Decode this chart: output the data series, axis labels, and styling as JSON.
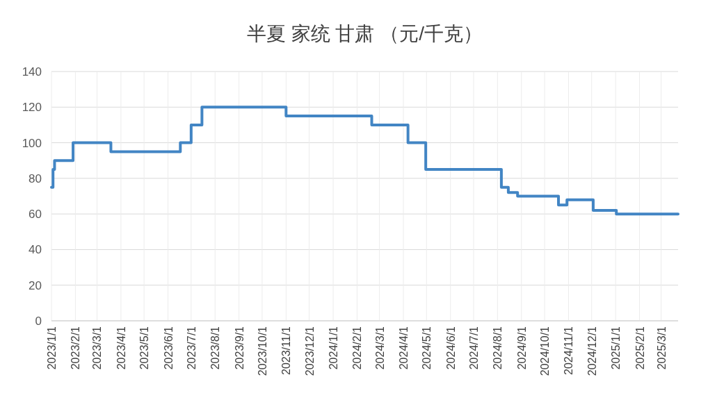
{
  "chart_data": {
    "type": "step",
    "title": "半夏 家统 甘肃 （元/千克）",
    "x": [
      "2023-01-01",
      "2023-01-03",
      "2023-01-05",
      "2023-01-29",
      "2023-03-19",
      "2023-06-17",
      "2023-07-01",
      "2023-07-15",
      "2023-11-01",
      "2024-02-20",
      "2024-04-07",
      "2024-04-30",
      "2024-08-06",
      "2024-08-15",
      "2024-08-27",
      "2024-10-19",
      "2024-10-30",
      "2024-12-03",
      "2025-01-02",
      "2025-03-23"
    ],
    "series": [
      {
        "color": "#4285c4",
        "values": [
          75,
          85,
          90,
          100,
          95,
          100,
          110,
          120,
          115,
          110,
          100,
          85,
          75,
          72,
          70,
          65,
          68,
          62,
          60,
          60
        ]
      }
    ],
    "xlim": [
      "2023-01-01",
      "2025-03-23"
    ],
    "xticks": [
      {
        "value": "2023-01-01",
        "label": "2023/1/1"
      },
      {
        "value": "2023-02-01",
        "label": "2023/2/1"
      },
      {
        "value": "2023-03-01",
        "label": "2023/3/1"
      },
      {
        "value": "2023-04-01",
        "label": "2023/4/1"
      },
      {
        "value": "2023-05-01",
        "label": "2023/5/1"
      },
      {
        "value": "2023-06-01",
        "label": "2023/6/1"
      },
      {
        "value": "2023-07-01",
        "label": "2023/7/1"
      },
      {
        "value": "2023-08-01",
        "label": "2023/8/1"
      },
      {
        "value": "2023-09-01",
        "label": "2023/9/1"
      },
      {
        "value": "2023-10-01",
        "label": "2023/10/1"
      },
      {
        "value": "2023-11-01",
        "label": "2023/11/1"
      },
      {
        "value": "2023-12-01",
        "label": "2023/12/1"
      },
      {
        "value": "2024-01-01",
        "label": "2024/1/1"
      },
      {
        "value": "2024-02-01",
        "label": "2024/2/1"
      },
      {
        "value": "2024-03-01",
        "label": "2024/3/1"
      },
      {
        "value": "2024-04-01",
        "label": "2024/4/1"
      },
      {
        "value": "2024-05-01",
        "label": "2024/5/1"
      },
      {
        "value": "2024-06-01",
        "label": "2024/6/1"
      },
      {
        "value": "2024-07-01",
        "label": "2024/7/1"
      },
      {
        "value": "2024-08-01",
        "label": "2024/8/1"
      },
      {
        "value": "2024-09-01",
        "label": "2024/9/1"
      },
      {
        "value": "2024-10-01",
        "label": "2024/10/1"
      },
      {
        "value": "2024-11-01",
        "label": "2024/11/1"
      },
      {
        "value": "2024-12-01",
        "label": "2024/12/1"
      },
      {
        "value": "2025-01-01",
        "label": "2025/1/1"
      },
      {
        "value": "2025-02-01",
        "label": "2025/2/1"
      },
      {
        "value": "2025-03-01",
        "label": "2025/3/1"
      }
    ],
    "ylim": [
      0,
      140
    ],
    "yticks": [
      0,
      20,
      40,
      60,
      80,
      100,
      120,
      140
    ],
    "grid": true,
    "line_style": "solid"
  }
}
